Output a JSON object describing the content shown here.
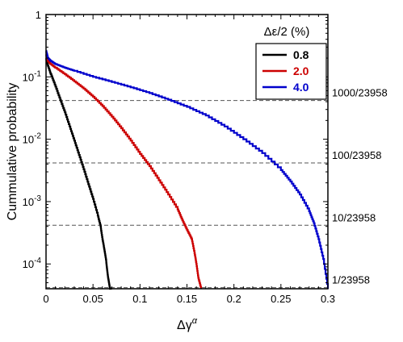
{
  "chart_data": {
    "type": "line",
    "xlabel": "Δγ",
    "xlabel_sup": "α",
    "ylabel": "Cummulative probability",
    "xlim": [
      0,
      0.3
    ],
    "ylim": [
      4e-05,
      1
    ],
    "yscale": "log",
    "x_ticks": [
      0,
      0.05,
      0.1,
      0.15,
      0.2,
      0.25,
      0.3
    ],
    "x_tick_labels": [
      "0",
      "0.05",
      "0.1",
      "0.15",
      "0.2",
      "0.25",
      "0.3"
    ],
    "y_ticks": [
      0.0001,
      0.001,
      0.01,
      0.1,
      1
    ],
    "y_tick_labels": [
      {
        "base": "10",
        "exp": "-4"
      },
      {
        "base": "10",
        "exp": "-3"
      },
      {
        "base": "10",
        "exp": "-2"
      },
      {
        "base": "10",
        "exp": "-1"
      },
      {
        "base": "1",
        "exp": ""
      }
    ],
    "legend": {
      "title": "Δε/2 (%)",
      "placement": "top-right"
    },
    "series": [
      {
        "name": "0.8",
        "color": "#000000",
        "x": [
          0,
          0.002,
          0.005,
          0.01,
          0.015,
          0.02,
          0.025,
          0.03,
          0.035,
          0.04,
          0.045,
          0.05,
          0.055,
          0.058,
          0.06,
          0.062,
          0.064,
          0.065,
          0.066,
          0.067,
          0.068,
          0.07
        ],
        "y": [
          0.2,
          0.15,
          0.11,
          0.07,
          0.043,
          0.027,
          0.016,
          0.0095,
          0.0056,
          0.0033,
          0.0019,
          0.0011,
          0.0006,
          0.0004,
          0.00025,
          0.00017,
          0.00011,
          8e-05,
          6e-05,
          5e-05,
          4e-05,
          4e-05
        ]
      },
      {
        "name": "2.0",
        "color": "#cc0000",
        "x": [
          0,
          0.002,
          0.005,
          0.01,
          0.02,
          0.03,
          0.04,
          0.05,
          0.06,
          0.07,
          0.08,
          0.09,
          0.1,
          0.11,
          0.12,
          0.13,
          0.14,
          0.145,
          0.15,
          0.155,
          0.158,
          0.16,
          0.162,
          0.165
        ],
        "y": [
          0.23,
          0.18,
          0.16,
          0.14,
          0.11,
          0.085,
          0.065,
          0.048,
          0.034,
          0.023,
          0.015,
          0.0095,
          0.0058,
          0.0037,
          0.0022,
          0.0013,
          0.00075,
          0.0005,
          0.00035,
          0.00025,
          0.00015,
          0.0001,
          6e-05,
          4e-05
        ]
      },
      {
        "name": "4.0",
        "color": "#0000cc",
        "x": [
          0,
          0.002,
          0.005,
          0.01,
          0.02,
          0.03,
          0.05,
          0.07,
          0.09,
          0.11,
          0.13,
          0.15,
          0.17,
          0.19,
          0.21,
          0.23,
          0.25,
          0.26,
          0.27,
          0.28,
          0.285,
          0.29,
          0.295,
          0.3
        ],
        "y": [
          0.26,
          0.2,
          0.18,
          0.16,
          0.14,
          0.125,
          0.1,
          0.083,
          0.068,
          0.055,
          0.043,
          0.033,
          0.024,
          0.016,
          0.01,
          0.006,
          0.0032,
          0.0021,
          0.0013,
          0.0007,
          0.00045,
          0.00025,
          0.00012,
          4e-05
        ]
      }
    ],
    "reference_lines": [
      {
        "label": "1000/23958",
        "y": 0.04174
      }
    ],
    "reference_lines_more": [
      {
        "label": "100/23958",
        "y": 0.004174
      },
      {
        "label": "10/23958",
        "y": 0.0004174
      },
      {
        "label": "1/23958",
        "y": 4.174e-05
      }
    ]
  }
}
